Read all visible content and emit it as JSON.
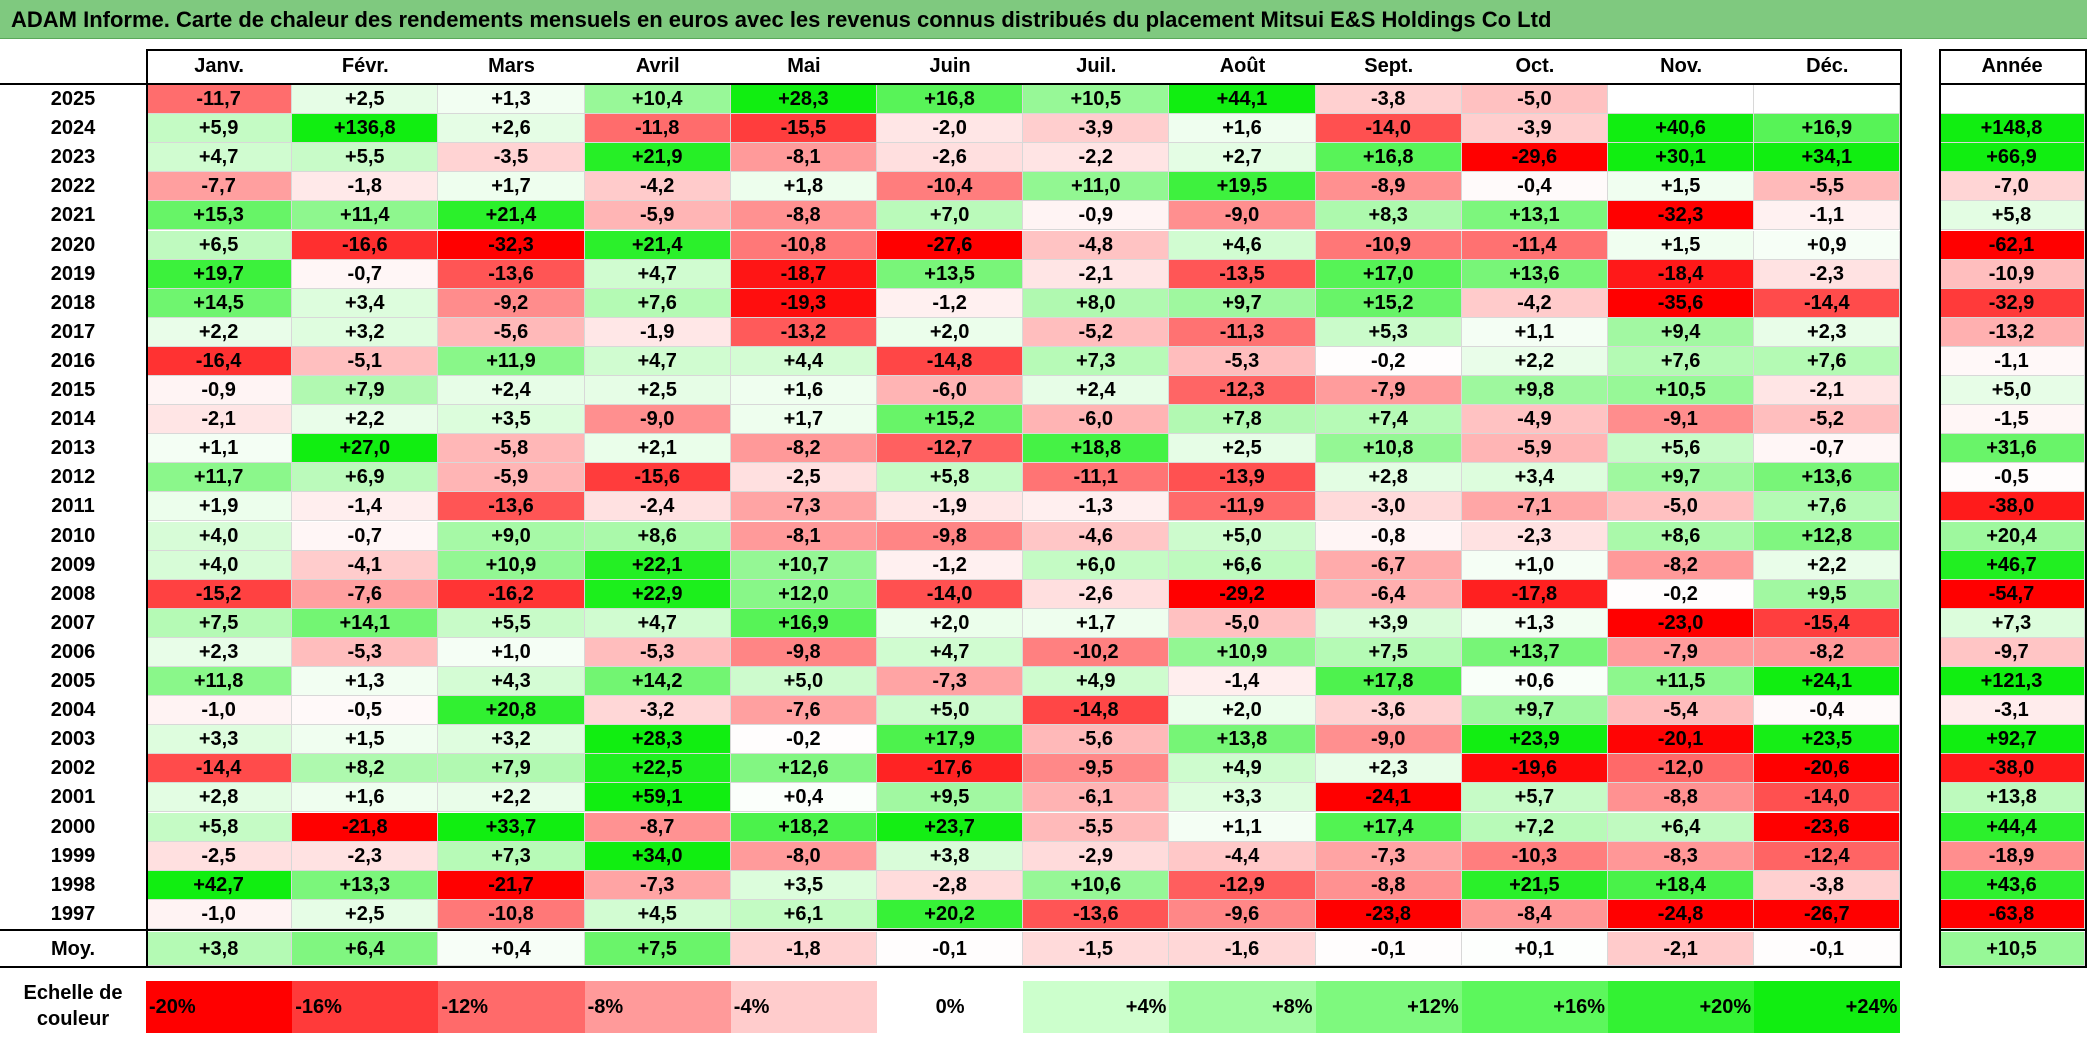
{
  "title": "ADAM Informe. Carte de chaleur des rendements mensuels en euros avec les revenus connus distribués du placement Mitsui E&S Holdings Co Ltd",
  "chart_data": {
    "type": "heatmap",
    "columns": [
      "Janv.",
      "Févr.",
      "Mars",
      "Avril",
      "Mai",
      "Juin",
      "Juil.",
      "Août",
      "Sept.",
      "Oct.",
      "Nov.",
      "Déc."
    ],
    "year_column_label": "Année",
    "rows": [
      {
        "year": "2025",
        "values": [
          "-11,7",
          "+2,5",
          "+1,3",
          "+10,4",
          "+28,3",
          "+16,8",
          "+10,5",
          "+44,1",
          "-3,8",
          "-5,0",
          "",
          ""
        ],
        "annual": ""
      },
      {
        "year": "2024",
        "values": [
          "+5,9",
          "+136,8",
          "+2,6",
          "-11,8",
          "-15,5",
          "-2,0",
          "-3,9",
          "+1,6",
          "-14,0",
          "-3,9",
          "+40,6",
          "+16,9"
        ],
        "annual": "+148,8"
      },
      {
        "year": "2023",
        "values": [
          "+4,7",
          "+5,5",
          "-3,5",
          "+21,9",
          "-8,1",
          "-2,6",
          "-2,2",
          "+2,7",
          "+16,8",
          "-29,6",
          "+30,1",
          "+34,1"
        ],
        "annual": "+66,9"
      },
      {
        "year": "2022",
        "values": [
          "-7,7",
          "-1,8",
          "+1,7",
          "-4,2",
          "+1,8",
          "-10,4",
          "+11,0",
          "+19,5",
          "-8,9",
          "-0,4",
          "+1,5",
          "-5,5"
        ],
        "annual": "-7,0"
      },
      {
        "year": "2021",
        "values": [
          "+15,3",
          "+11,4",
          "+21,4",
          "-5,9",
          "-8,8",
          "+7,0",
          "-0,9",
          "-9,0",
          "+8,3",
          "+13,1",
          "-32,3",
          "-1,1"
        ],
        "annual": "+5,8"
      },
      {
        "year": "2020",
        "values": [
          "+6,5",
          "-16,6",
          "-32,3",
          "+21,4",
          "-10,8",
          "-27,6",
          "-4,8",
          "+4,6",
          "-10,9",
          "-11,4",
          "+1,5",
          "+0,9"
        ],
        "annual": "-62,1"
      },
      {
        "year": "2019",
        "values": [
          "+19,7",
          "-0,7",
          "-13,6",
          "+4,7",
          "-18,7",
          "+13,5",
          "-2,1",
          "-13,5",
          "+17,0",
          "+13,6",
          "-18,4",
          "-2,3"
        ],
        "annual": "-10,9"
      },
      {
        "year": "2018",
        "values": [
          "+14,5",
          "+3,4",
          "-9,2",
          "+7,6",
          "-19,3",
          "-1,2",
          "+8,0",
          "+9,7",
          "+15,2",
          "-4,2",
          "-35,6",
          "-14,4"
        ],
        "annual": "-32,9"
      },
      {
        "year": "2017",
        "values": [
          "+2,2",
          "+3,2",
          "-5,6",
          "-1,9",
          "-13,2",
          "+2,0",
          "-5,2",
          "-11,3",
          "+5,3",
          "+1,1",
          "+9,4",
          "+2,3"
        ],
        "annual": "-13,2"
      },
      {
        "year": "2016",
        "values": [
          "-16,4",
          "-5,1",
          "+11,9",
          "+4,7",
          "+4,4",
          "-14,8",
          "+7,3",
          "-5,3",
          "-0,2",
          "+2,2",
          "+7,6",
          "+7,6"
        ],
        "annual": "-1,1"
      },
      {
        "year": "2015",
        "values": [
          "-0,9",
          "+7,9",
          "+2,4",
          "+2,5",
          "+1,6",
          "-6,0",
          "+2,4",
          "-12,3",
          "-7,9",
          "+9,8",
          "+10,5",
          "-2,1"
        ],
        "annual": "+5,0"
      },
      {
        "year": "2014",
        "values": [
          "-2,1",
          "+2,2",
          "+3,5",
          "-9,0",
          "+1,7",
          "+15,2",
          "-6,0",
          "+7,8",
          "+7,4",
          "-4,9",
          "-9,1",
          "-5,2"
        ],
        "annual": "-1,5"
      },
      {
        "year": "2013",
        "values": [
          "+1,1",
          "+27,0",
          "-5,8",
          "+2,1",
          "-8,2",
          "-12,7",
          "+18,8",
          "+2,5",
          "+10,8",
          "-5,9",
          "+5,6",
          "-0,7"
        ],
        "annual": "+31,6"
      },
      {
        "year": "2012",
        "values": [
          "+11,7",
          "+6,9",
          "-5,9",
          "-15,6",
          "-2,5",
          "+5,8",
          "-11,1",
          "-13,9",
          "+2,8",
          "+3,4",
          "+9,7",
          "+13,6"
        ],
        "annual": "-0,5"
      },
      {
        "year": "2011",
        "values": [
          "+1,9",
          "-1,4",
          "-13,6",
          "-2,4",
          "-7,3",
          "-1,9",
          "-1,3",
          "-11,9",
          "-3,0",
          "-7,1",
          "-5,0",
          "+7,6"
        ],
        "annual": "-38,0"
      },
      {
        "year": "2010",
        "values": [
          "+4,0",
          "-0,7",
          "+9,0",
          "+8,6",
          "-8,1",
          "-9,8",
          "-4,6",
          "+5,0",
          "-0,8",
          "-2,3",
          "+8,6",
          "+12,8"
        ],
        "annual": "+20,4"
      },
      {
        "year": "2009",
        "values": [
          "+4,0",
          "-4,1",
          "+10,9",
          "+22,1",
          "+10,7",
          "-1,2",
          "+6,0",
          "+6,6",
          "-6,7",
          "+1,0",
          "-8,2",
          "+2,2"
        ],
        "annual": "+46,7"
      },
      {
        "year": "2008",
        "values": [
          "-15,2",
          "-7,6",
          "-16,2",
          "+22,9",
          "+12,0",
          "-14,0",
          "-2,6",
          "-29,2",
          "-6,4",
          "-17,8",
          "-0,2",
          "+9,5"
        ],
        "annual": "-54,7"
      },
      {
        "year": "2007",
        "values": [
          "+7,5",
          "+14,1",
          "+5,5",
          "+4,7",
          "+16,9",
          "+2,0",
          "+1,7",
          "-5,0",
          "+3,9",
          "+1,3",
          "-23,0",
          "-15,4"
        ],
        "annual": "+7,3"
      },
      {
        "year": "2006",
        "values": [
          "+2,3",
          "-5,3",
          "+1,0",
          "-5,3",
          "-9,8",
          "+4,7",
          "-10,2",
          "+10,9",
          "+7,5",
          "+13,7",
          "-7,9",
          "-8,2"
        ],
        "annual": "-9,7"
      },
      {
        "year": "2005",
        "values": [
          "+11,8",
          "+1,3",
          "+4,3",
          "+14,2",
          "+5,0",
          "-7,3",
          "+4,9",
          "-1,4",
          "+17,8",
          "+0,6",
          "+11,5",
          "+24,1"
        ],
        "annual": "+121,3"
      },
      {
        "year": "2004",
        "values": [
          "-1,0",
          "-0,5",
          "+20,8",
          "-3,2",
          "-7,6",
          "+5,0",
          "-14,8",
          "+2,0",
          "-3,6",
          "+9,7",
          "-5,4",
          "-0,4"
        ],
        "annual": "-3,1"
      },
      {
        "year": "2003",
        "values": [
          "+3,3",
          "+1,5",
          "+3,2",
          "+28,3",
          "-0,2",
          "+17,9",
          "-5,6",
          "+13,8",
          "-9,0",
          "+23,9",
          "-20,1",
          "+23,5"
        ],
        "annual": "+92,7"
      },
      {
        "year": "2002",
        "values": [
          "-14,4",
          "+8,2",
          "+7,9",
          "+22,5",
          "+12,6",
          "-17,6",
          "-9,5",
          "+4,9",
          "+2,3",
          "-19,6",
          "-12,0",
          "-20,6"
        ],
        "annual": "-38,0"
      },
      {
        "year": "2001",
        "values": [
          "+2,8",
          "+1,6",
          "+2,2",
          "+59,1",
          "+0,4",
          "+9,5",
          "-6,1",
          "+3,3",
          "-24,1",
          "+5,7",
          "-8,8",
          "-14,0"
        ],
        "annual": "+13,8"
      },
      {
        "year": "2000",
        "values": [
          "+5,8",
          "-21,8",
          "+33,7",
          "-8,7",
          "+18,2",
          "+23,7",
          "-5,5",
          "+1,1",
          "+17,4",
          "+7,2",
          "+6,4",
          "-23,6"
        ],
        "annual": "+44,4"
      },
      {
        "year": "1999",
        "values": [
          "-2,5",
          "-2,3",
          "+7,3",
          "+34,0",
          "-8,0",
          "+3,8",
          "-2,9",
          "-4,4",
          "-7,3",
          "-10,3",
          "-8,3",
          "-12,4"
        ],
        "annual": "-18,9"
      },
      {
        "year": "1998",
        "values": [
          "+42,7",
          "+13,3",
          "-21,7",
          "-7,3",
          "+3,5",
          "-2,8",
          "+10,6",
          "-12,9",
          "-8,8",
          "+21,5",
          "+18,4",
          "-3,8"
        ],
        "annual": "+43,6"
      },
      {
        "year": "1997",
        "values": [
          "-1,0",
          "+2,5",
          "-10,8",
          "+4,5",
          "+6,1",
          "+20,2",
          "-13,6",
          "-9,6",
          "-23,8",
          "-8,4",
          "-24,8",
          "-26,7"
        ],
        "annual": "-63,8"
      }
    ],
    "average": {
      "label": "Moy.",
      "values": [
        "+3,8",
        "+6,4",
        "+0,4",
        "+7,5",
        "-1,8",
        "-0,1",
        "-1,5",
        "-1,6",
        "-0,1",
        "+0,1",
        "-2,1",
        "-0,1"
      ],
      "annual": "+10,5"
    },
    "scale": {
      "label": "Echelle de couleur",
      "items": [
        {
          "label": "-20%",
          "color": "#ff0000"
        },
        {
          "label": "-16%",
          "color": "#ff3a3a"
        },
        {
          "label": "-12%",
          "color": "#ff6a6a"
        },
        {
          "label": "-8%",
          "color": "#ff9a9a"
        },
        {
          "label": "-4%",
          "color": "#ffcccc"
        },
        {
          "label": "0%",
          "color": "#ffffff"
        },
        {
          "label": "+4%",
          "color": "#ccffcc"
        },
        {
          "label": "+8%",
          "color": "#a2fba2"
        },
        {
          "label": "+12%",
          "color": "#7ef97e"
        },
        {
          "label": "+16%",
          "color": "#5cf75c"
        },
        {
          "label": "+20%",
          "color": "#33f233"
        },
        {
          "label": "+24%",
          "color": "#11ee11"
        }
      ]
    }
  }
}
